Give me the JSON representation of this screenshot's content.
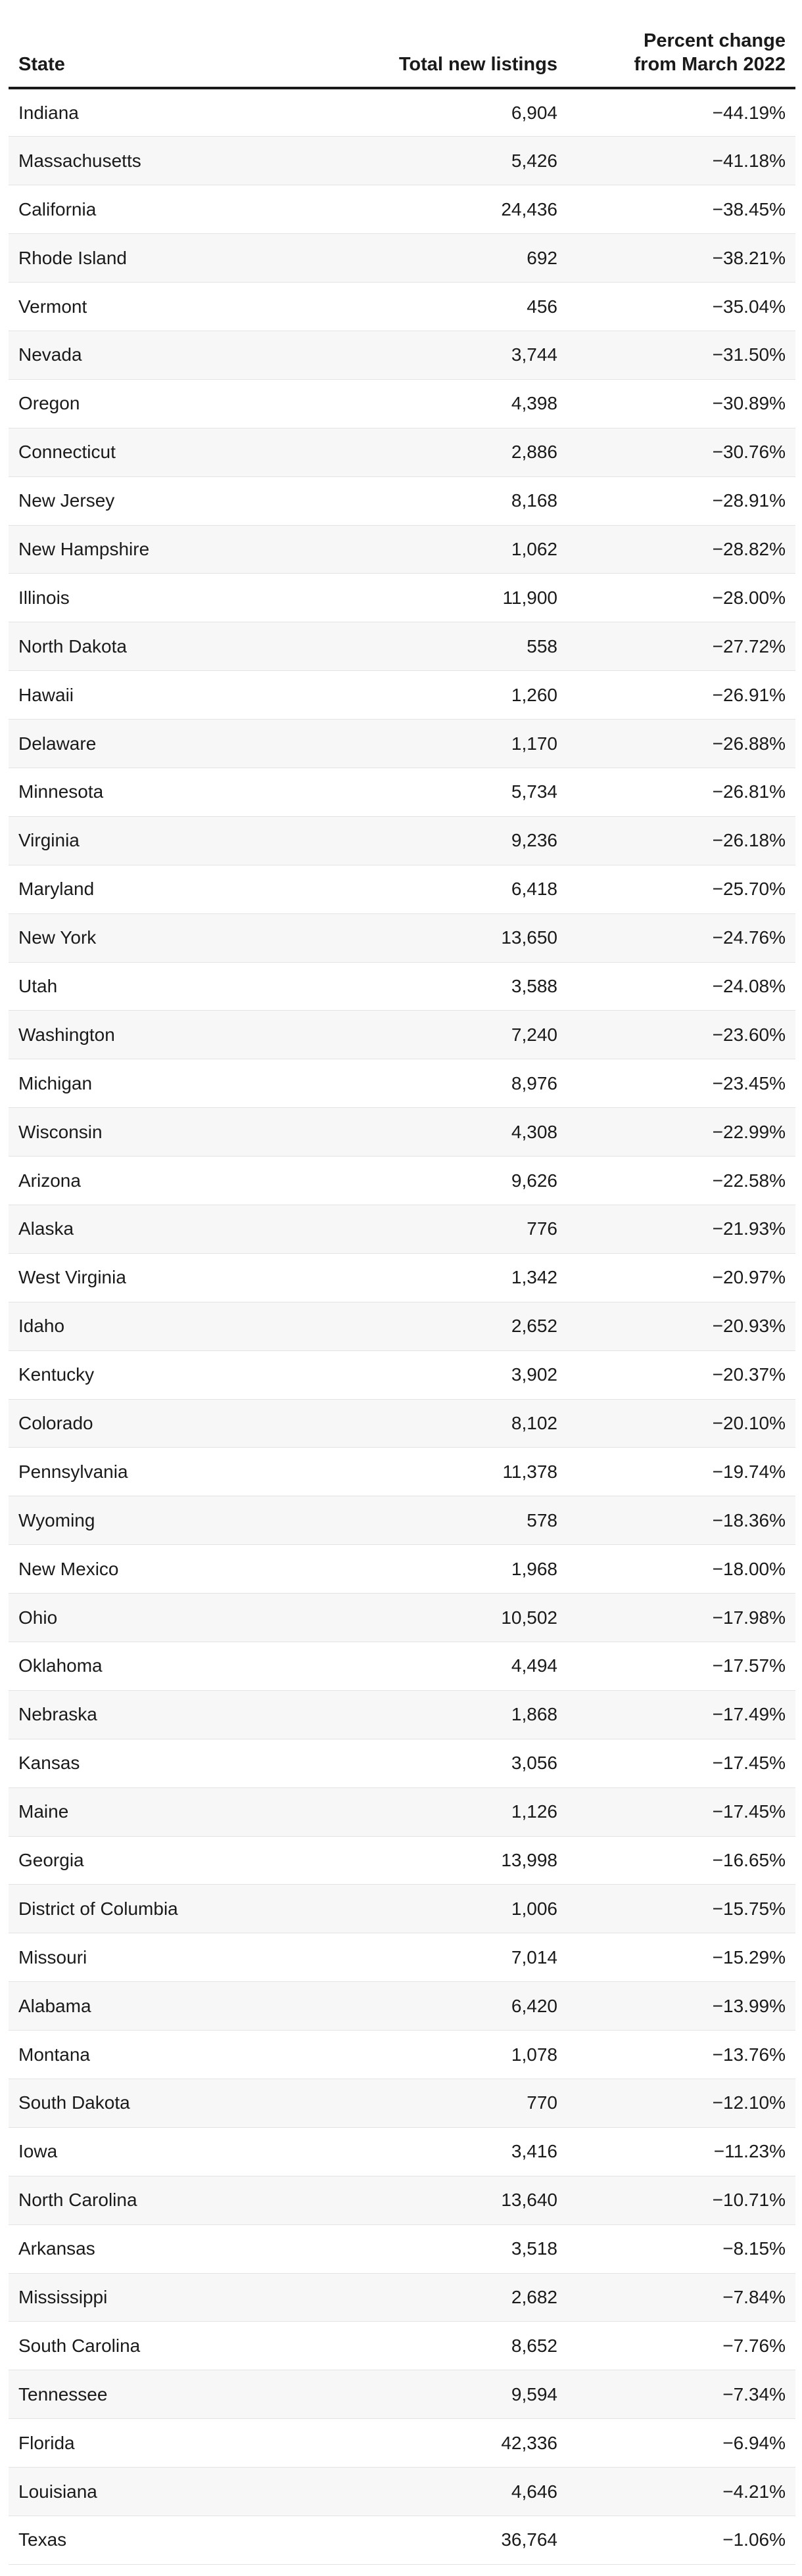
{
  "chart_data": {
    "type": "table",
    "columns": [
      "State",
      "Total new listings",
      "Percent change from March 2022"
    ],
    "header_lines": {
      "state": "State",
      "listings": "Total new listings",
      "change_line1": "Percent change",
      "change_line2": "from March 2022"
    },
    "rows": [
      {
        "state": "Indiana",
        "listings": "6,904",
        "change": "−44.19%"
      },
      {
        "state": "Massachusetts",
        "listings": "5,426",
        "change": "−41.18%"
      },
      {
        "state": "California",
        "listings": "24,436",
        "change": "−38.45%"
      },
      {
        "state": "Rhode Island",
        "listings": "692",
        "change": "−38.21%"
      },
      {
        "state": "Vermont",
        "listings": "456",
        "change": "−35.04%"
      },
      {
        "state": "Nevada",
        "listings": "3,744",
        "change": "−31.50%"
      },
      {
        "state": "Oregon",
        "listings": "4,398",
        "change": "−30.89%"
      },
      {
        "state": "Connecticut",
        "listings": "2,886",
        "change": "−30.76%"
      },
      {
        "state": "New Jersey",
        "listings": "8,168",
        "change": "−28.91%"
      },
      {
        "state": "New Hampshire",
        "listings": "1,062",
        "change": "−28.82%"
      },
      {
        "state": "Illinois",
        "listings": "11,900",
        "change": "−28.00%"
      },
      {
        "state": "North Dakota",
        "listings": "558",
        "change": "−27.72%"
      },
      {
        "state": "Hawaii",
        "listings": "1,260",
        "change": "−26.91%"
      },
      {
        "state": "Delaware",
        "listings": "1,170",
        "change": "−26.88%"
      },
      {
        "state": "Minnesota",
        "listings": "5,734",
        "change": "−26.81%"
      },
      {
        "state": "Virginia",
        "listings": "9,236",
        "change": "−26.18%"
      },
      {
        "state": "Maryland",
        "listings": "6,418",
        "change": "−25.70%"
      },
      {
        "state": "New York",
        "listings": "13,650",
        "change": "−24.76%"
      },
      {
        "state": "Utah",
        "listings": "3,588",
        "change": "−24.08%"
      },
      {
        "state": "Washington",
        "listings": "7,240",
        "change": "−23.60%"
      },
      {
        "state": "Michigan",
        "listings": "8,976",
        "change": "−23.45%"
      },
      {
        "state": "Wisconsin",
        "listings": "4,308",
        "change": "−22.99%"
      },
      {
        "state": "Arizona",
        "listings": "9,626",
        "change": "−22.58%"
      },
      {
        "state": "Alaska",
        "listings": "776",
        "change": "−21.93%"
      },
      {
        "state": "West Virginia",
        "listings": "1,342",
        "change": "−20.97%"
      },
      {
        "state": "Idaho",
        "listings": "2,652",
        "change": "−20.93%"
      },
      {
        "state": "Kentucky",
        "listings": "3,902",
        "change": "−20.37%"
      },
      {
        "state": "Colorado",
        "listings": "8,102",
        "change": "−20.10%"
      },
      {
        "state": "Pennsylvania",
        "listings": "11,378",
        "change": "−19.74%"
      },
      {
        "state": "Wyoming",
        "listings": "578",
        "change": "−18.36%"
      },
      {
        "state": "New Mexico",
        "listings": "1,968",
        "change": "−18.00%"
      },
      {
        "state": "Ohio",
        "listings": "10,502",
        "change": "−17.98%"
      },
      {
        "state": "Oklahoma",
        "listings": "4,494",
        "change": "−17.57%"
      },
      {
        "state": "Nebraska",
        "listings": "1,868",
        "change": "−17.49%"
      },
      {
        "state": "Kansas",
        "listings": "3,056",
        "change": "−17.45%"
      },
      {
        "state": "Maine",
        "listings": "1,126",
        "change": "−17.45%"
      },
      {
        "state": "Georgia",
        "listings": "13,998",
        "change": "−16.65%"
      },
      {
        "state": "District of Columbia",
        "listings": "1,006",
        "change": "−15.75%"
      },
      {
        "state": "Missouri",
        "listings": "7,014",
        "change": "−15.29%"
      },
      {
        "state": "Alabama",
        "listings": "6,420",
        "change": "−13.99%"
      },
      {
        "state": "Montana",
        "listings": "1,078",
        "change": "−13.76%"
      },
      {
        "state": "South Dakota",
        "listings": "770",
        "change": "−12.10%"
      },
      {
        "state": "Iowa",
        "listings": "3,416",
        "change": "−11.23%"
      },
      {
        "state": "North Carolina",
        "listings": "13,640",
        "change": "−10.71%"
      },
      {
        "state": "Arkansas",
        "listings": "3,518",
        "change": "−8.15%"
      },
      {
        "state": "Mississippi",
        "listings": "2,682",
        "change": "−7.84%"
      },
      {
        "state": "South Carolina",
        "listings": "8,652",
        "change": "−7.76%"
      },
      {
        "state": "Tennessee",
        "listings": "9,594",
        "change": "−7.34%"
      },
      {
        "state": "Florida",
        "listings": "42,336",
        "change": "−6.94%"
      },
      {
        "state": "Louisiana",
        "listings": "4,646",
        "change": "−4.21%"
      },
      {
        "state": "Texas",
        "listings": "36,764",
        "change": "−1.06%"
      }
    ]
  },
  "colors": {
    "text": "#1a1a1a",
    "stripe": "#f7f7f7",
    "header_rule": "#1a1a1a",
    "row_rule": "#e3e3e3"
  }
}
